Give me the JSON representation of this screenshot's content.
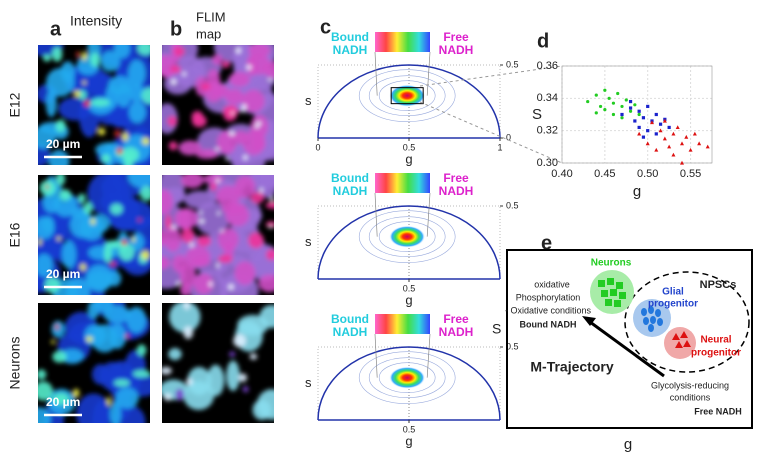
{
  "panel_a": {
    "label": "a",
    "title": "Intensity",
    "rows": [
      "E12",
      "E16",
      "Neurons"
    ],
    "scale_bars": [
      "20 µm",
      "20 µm",
      "20 µm"
    ]
  },
  "panel_b": {
    "label": "b",
    "title": [
      "FLIM",
      "map"
    ]
  },
  "panel_c": {
    "label": "c",
    "plots": [
      {
        "bound": [
          "Bound",
          "NADH"
        ],
        "free": [
          "Free",
          "NADH"
        ],
        "s_label": "s",
        "g_label": "g",
        "xticks": [
          0,
          0.5,
          1
        ],
        "yticks": [
          0.5,
          0
        ]
      },
      {
        "bound": [
          "Bound",
          "NADH"
        ],
        "free": [
          "Free",
          "NADH"
        ],
        "s_label": "s",
        "g_label": "g",
        "xticks": [
          0.5
        ],
        "yticks": [
          0.5
        ]
      },
      {
        "bound": [
          "Bound",
          "NADH"
        ],
        "free": [
          "Free",
          "NADH"
        ],
        "s_label": "s",
        "g_label": "g",
        "xticks": [
          0.5
        ],
        "yticks": [
          0.5
        ]
      }
    ]
  },
  "chart_data": {
    "type": "scatter",
    "label": "d",
    "x_label": "g",
    "y_label": "S",
    "xlim": [
      0.4,
      0.575
    ],
    "ylim": [
      0.3,
      0.36
    ],
    "xticks": [
      {
        "value": 0.4,
        "label": "0.40"
      },
      0.45,
      {
        "value": 0.5,
        "label": "0.50"
      },
      0.55
    ],
    "yticks": [
      {
        "value": 0.3,
        "label": "0.30"
      },
      0.32,
      0.34,
      0.36
    ],
    "grid": true,
    "series": [
      {
        "color": "#22cc22",
        "marker": "circle",
        "x": [
          0.43,
          0.44,
          0.445,
          0.45,
          0.45,
          0.455,
          0.46,
          0.46,
          0.465,
          0.47,
          0.47,
          0.475,
          0.48,
          0.485,
          0.49,
          0.44
        ],
        "y": [
          0.338,
          0.342,
          0.335,
          0.345,
          0.333,
          0.34,
          0.337,
          0.33,
          0.343,
          0.335,
          0.328,
          0.339,
          0.332,
          0.336,
          0.33,
          0.331
        ]
      },
      {
        "color": "#1a22cc",
        "marker": "square",
        "x": [
          0.47,
          0.48,
          0.485,
          0.49,
          0.49,
          0.495,
          0.5,
          0.5,
          0.505,
          0.51,
          0.51,
          0.515,
          0.52,
          0.48,
          0.495,
          0.525
        ],
        "y": [
          0.33,
          0.334,
          0.326,
          0.332,
          0.322,
          0.328,
          0.335,
          0.32,
          0.326,
          0.33,
          0.318,
          0.324,
          0.327,
          0.338,
          0.316,
          0.322
        ]
      },
      {
        "color": "#dd1111",
        "marker": "triangle",
        "x": [
          0.49,
          0.5,
          0.505,
          0.51,
          0.515,
          0.52,
          0.52,
          0.525,
          0.53,
          0.53,
          0.535,
          0.54,
          0.54,
          0.545,
          0.55,
          0.555,
          0.56,
          0.57
        ],
        "y": [
          0.318,
          0.312,
          0.325,
          0.308,
          0.32,
          0.315,
          0.326,
          0.31,
          0.318,
          0.305,
          0.322,
          0.312,
          0.3,
          0.316,
          0.308,
          0.318,
          0.312,
          0.31
        ]
      }
    ]
  },
  "panel_e": {
    "label": "e",
    "neurons": "Neurons",
    "npscs": "NPSCs",
    "glial": [
      "Glial",
      "progenitor"
    ],
    "neural": [
      "Neural",
      "progenitor"
    ],
    "oxidative": [
      "oxidative",
      "Phosphorylation",
      "- Oxidative conditions"
    ],
    "bound": "Bound NADH",
    "trajectory": "M-Trajectory",
    "glycolysis": [
      "Glycolysis-reducing",
      "conditions"
    ],
    "free": "Free NADH",
    "s_label": "S",
    "g_label": "g"
  }
}
